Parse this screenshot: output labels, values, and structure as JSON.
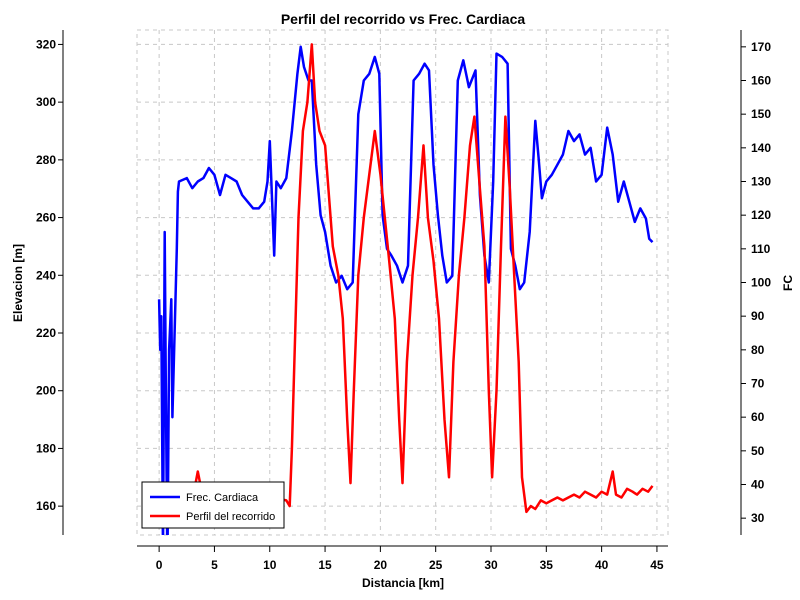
{
  "chart_data": {
    "type": "line",
    "title": "Perfil del recorrido vs Frec. Cardiaca",
    "xlabel": "Distancia [km]",
    "ylabel_left": "Elevacion [m]",
    "ylabel_right": "FC",
    "xlim": [
      -2,
      46
    ],
    "ylim_left": [
      150,
      325
    ],
    "ylim_right": [
      25,
      175
    ],
    "x_ticks": [
      0,
      5,
      10,
      15,
      20,
      25,
      30,
      35,
      40,
      45
    ],
    "y_left_ticks": [
      160,
      180,
      200,
      220,
      240,
      260,
      280,
      300,
      320
    ],
    "y_right_ticks": [
      30,
      40,
      50,
      60,
      70,
      80,
      90,
      100,
      110,
      120,
      130,
      140,
      150,
      160,
      170
    ],
    "grid": true,
    "legend_position": "bottom-left",
    "series": [
      {
        "name": "Frec. Cardiaca",
        "axis": "right",
        "color": "#0000ff",
        "points": [
          [
            0.0,
            95
          ],
          [
            0.1,
            80
          ],
          [
            0.2,
            90
          ],
          [
            0.35,
            20
          ],
          [
            0.5,
            115
          ],
          [
            0.6,
            70
          ],
          [
            0.75,
            15
          ],
          [
            0.9,
            80
          ],
          [
            1.1,
            95
          ],
          [
            1.2,
            60
          ],
          [
            1.4,
            85
          ],
          [
            1.6,
            110
          ],
          [
            1.7,
            127
          ],
          [
            1.8,
            130
          ],
          [
            2.5,
            131
          ],
          [
            3.0,
            128
          ],
          [
            3.5,
            130
          ],
          [
            4.0,
            131
          ],
          [
            4.5,
            134
          ],
          [
            5.0,
            132
          ],
          [
            5.5,
            126
          ],
          [
            6.0,
            132
          ],
          [
            6.5,
            131
          ],
          [
            7.0,
            130
          ],
          [
            7.5,
            126
          ],
          [
            8.0,
            124
          ],
          [
            8.5,
            122
          ],
          [
            9.0,
            122
          ],
          [
            9.5,
            124
          ],
          [
            9.8,
            130
          ],
          [
            10.0,
            142
          ],
          [
            10.2,
            125
          ],
          [
            10.4,
            108
          ],
          [
            10.6,
            130
          ],
          [
            11.0,
            128
          ],
          [
            11.5,
            131
          ],
          [
            12.0,
            145
          ],
          [
            12.5,
            162
          ],
          [
            12.8,
            170
          ],
          [
            13.1,
            164
          ],
          [
            13.5,
            160
          ],
          [
            13.8,
            160
          ],
          [
            14.2,
            135
          ],
          [
            14.6,
            120
          ],
          [
            15.0,
            115
          ],
          [
            15.5,
            105
          ],
          [
            16.0,
            100
          ],
          [
            16.5,
            102
          ],
          [
            17.0,
            98
          ],
          [
            17.5,
            100
          ],
          [
            18.0,
            150
          ],
          [
            18.5,
            160
          ],
          [
            19.0,
            162
          ],
          [
            19.5,
            167
          ],
          [
            19.9,
            162
          ],
          [
            20.2,
            120
          ],
          [
            20.6,
            110
          ],
          [
            21.0,
            108
          ],
          [
            21.5,
            105
          ],
          [
            22.0,
            100
          ],
          [
            22.5,
            105
          ],
          [
            23.0,
            160
          ],
          [
            23.5,
            162
          ],
          [
            24.0,
            165
          ],
          [
            24.4,
            163
          ],
          [
            24.8,
            135
          ],
          [
            25.2,
            120
          ],
          [
            25.6,
            108
          ],
          [
            26.0,
            100
          ],
          [
            26.5,
            102
          ],
          [
            27.0,
            160
          ],
          [
            27.5,
            166
          ],
          [
            28.0,
            158
          ],
          [
            28.6,
            163
          ],
          [
            29.0,
            126
          ],
          [
            29.4,
            108
          ],
          [
            29.8,
            100
          ],
          [
            30.2,
            130
          ],
          [
            30.5,
            168
          ],
          [
            31.0,
            167
          ],
          [
            31.5,
            165
          ],
          [
            31.8,
            110
          ],
          [
            32.2,
            105
          ],
          [
            32.6,
            98
          ],
          [
            33.0,
            100
          ],
          [
            33.5,
            115
          ],
          [
            34.0,
            148
          ],
          [
            34.3,
            137
          ],
          [
            34.6,
            125
          ],
          [
            35.0,
            130
          ],
          [
            35.5,
            132
          ],
          [
            36.0,
            135
          ],
          [
            36.5,
            138
          ],
          [
            37.0,
            145
          ],
          [
            37.5,
            142
          ],
          [
            38.0,
            144
          ],
          [
            38.5,
            138
          ],
          [
            39.0,
            140
          ],
          [
            39.5,
            130
          ],
          [
            40.0,
            132
          ],
          [
            40.5,
            146
          ],
          [
            41.0,
            138
          ],
          [
            41.5,
            124
          ],
          [
            42.0,
            130
          ],
          [
            42.5,
            124
          ],
          [
            43.0,
            118
          ],
          [
            43.5,
            122
          ],
          [
            44.0,
            119
          ],
          [
            44.3,
            113
          ],
          [
            44.6,
            112
          ]
        ]
      },
      {
        "name": "Perfil del recorrido",
        "axis": "left",
        "color": "#ff0000",
        "points": [
          [
            3.3,
            168
          ],
          [
            3.5,
            172
          ],
          [
            3.7,
            168
          ],
          [
            11.5,
            162
          ],
          [
            11.8,
            160
          ],
          [
            12.0,
            180
          ],
          [
            12.3,
            220
          ],
          [
            12.6,
            260
          ],
          [
            13.0,
            290
          ],
          [
            13.4,
            300
          ],
          [
            13.8,
            320
          ],
          [
            14.1,
            300
          ],
          [
            14.5,
            290
          ],
          [
            15.0,
            285
          ],
          [
            15.3,
            270
          ],
          [
            15.7,
            250
          ],
          [
            16.2,
            240
          ],
          [
            16.6,
            225
          ],
          [
            17.0,
            190
          ],
          [
            17.3,
            168
          ],
          [
            17.6,
            200
          ],
          [
            18.0,
            240
          ],
          [
            18.5,
            260
          ],
          [
            19.0,
            275
          ],
          [
            19.5,
            290
          ],
          [
            20.0,
            275
          ],
          [
            20.4,
            260
          ],
          [
            20.8,
            245
          ],
          [
            21.3,
            225
          ],
          [
            21.7,
            190
          ],
          [
            22.0,
            168
          ],
          [
            22.4,
            210
          ],
          [
            22.9,
            240
          ],
          [
            23.4,
            260
          ],
          [
            23.9,
            285
          ],
          [
            24.3,
            260
          ],
          [
            24.8,
            245
          ],
          [
            25.3,
            225
          ],
          [
            25.8,
            190
          ],
          [
            26.2,
            170
          ],
          [
            26.6,
            210
          ],
          [
            27.1,
            240
          ],
          [
            27.6,
            260
          ],
          [
            28.1,
            285
          ],
          [
            28.5,
            295
          ],
          [
            29.0,
            270
          ],
          [
            29.4,
            250
          ],
          [
            29.8,
            200
          ],
          [
            30.1,
            170
          ],
          [
            30.5,
            200
          ],
          [
            30.9,
            250
          ],
          [
            31.3,
            295
          ],
          [
            31.7,
            270
          ],
          [
            32.1,
            240
          ],
          [
            32.5,
            210
          ],
          [
            32.8,
            170
          ],
          [
            33.2,
            158
          ],
          [
            33.6,
            160
          ],
          [
            34.0,
            159
          ],
          [
            34.5,
            162
          ],
          [
            35.0,
            161
          ],
          [
            35.5,
            162
          ],
          [
            36.0,
            163
          ],
          [
            36.5,
            162
          ],
          [
            37.0,
            163
          ],
          [
            37.5,
            164
          ],
          [
            38.0,
            163
          ],
          [
            38.5,
            165
          ],
          [
            39.0,
            164
          ],
          [
            39.5,
            163
          ],
          [
            40.0,
            165
          ],
          [
            40.5,
            164
          ],
          [
            41.0,
            172
          ],
          [
            41.3,
            164
          ],
          [
            41.8,
            163
          ],
          [
            42.3,
            166
          ],
          [
            42.8,
            165
          ],
          [
            43.2,
            164
          ],
          [
            43.7,
            166
          ],
          [
            44.2,
            165
          ],
          [
            44.6,
            167
          ]
        ]
      }
    ]
  }
}
